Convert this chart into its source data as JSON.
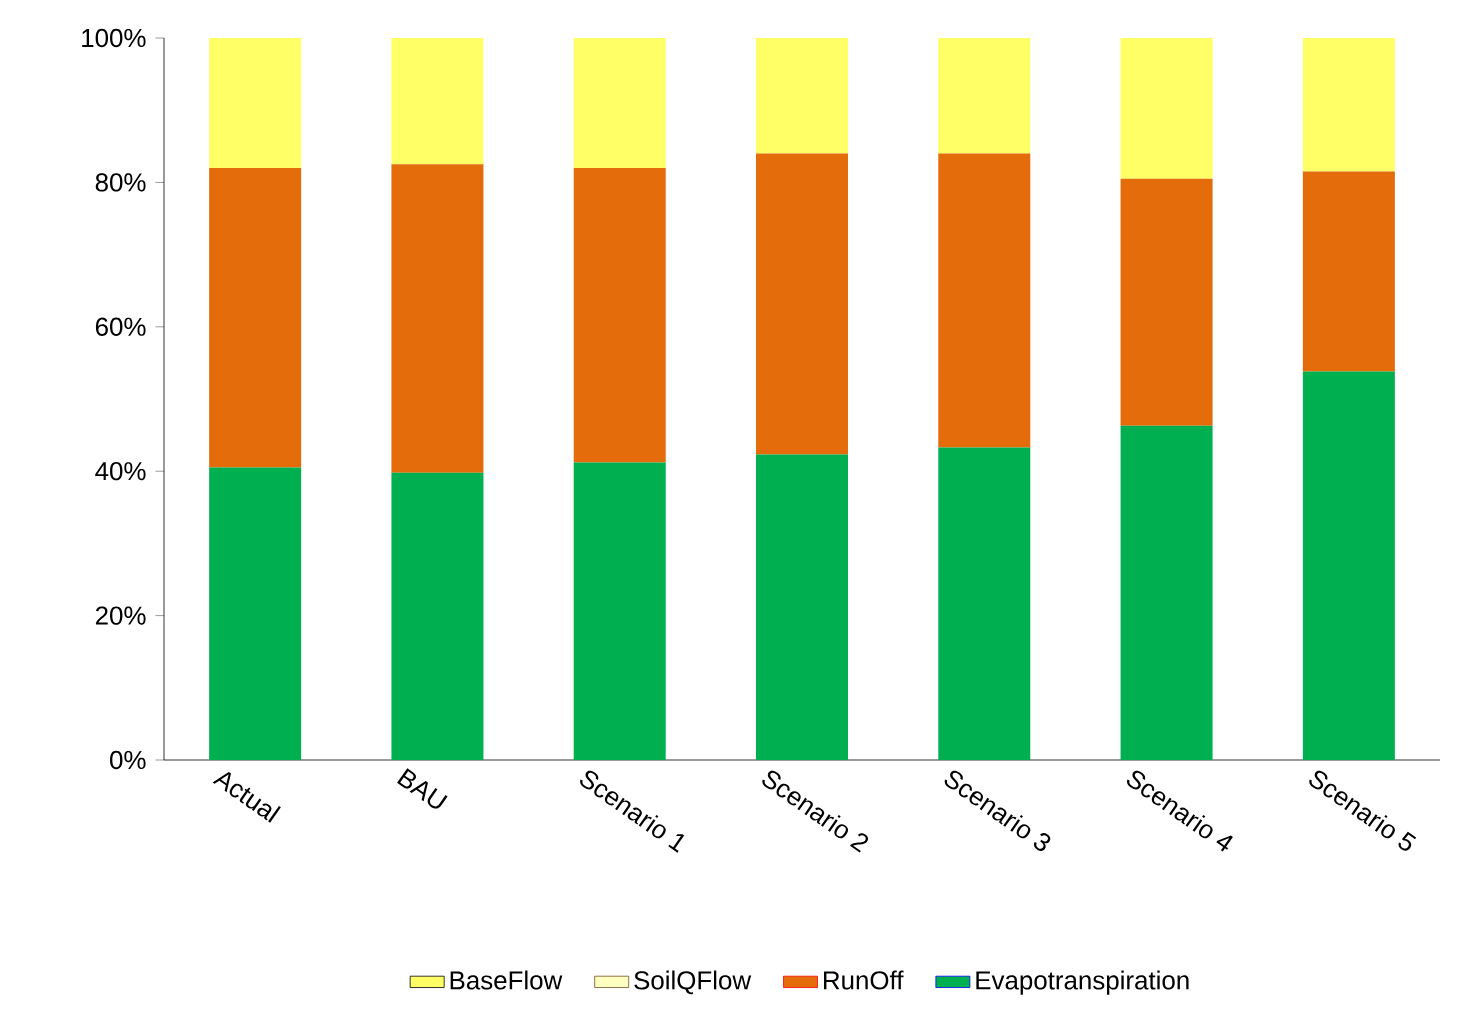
{
  "chart_data": {
    "type": "bar",
    "stacked": true,
    "categories": [
      "Actual",
      "BAU",
      "Scenario 1",
      "Scenario 2",
      "Scenario 3",
      "Scenario 4",
      "Scenario 5"
    ],
    "series": [
      {
        "name": "Evapotranspiration",
        "color": "#00b050",
        "values": [
          40.5,
          39.8,
          41.2,
          42.3,
          43.3,
          46.3,
          53.8
        ]
      },
      {
        "name": "RunOff",
        "color": "#e46c0a",
        "values": [
          41.5,
          42.7,
          40.8,
          41.7,
          40.7,
          34.2,
          27.7
        ]
      },
      {
        "name": "SoilQFlow",
        "color": "#ffffc0",
        "values": [
          0,
          0,
          0,
          0,
          0,
          0,
          0
        ]
      },
      {
        "name": "BaseFlow",
        "color": "#ffff66",
        "values": [
          18,
          17.5,
          18,
          16,
          16,
          19.5,
          18.5
        ]
      }
    ],
    "ylim": [
      0,
      100
    ],
    "yticks": [
      {
        "value": 0,
        "label": "0%"
      },
      {
        "value": 20,
        "label": "20%"
      },
      {
        "value": 40,
        "label": "40%"
      },
      {
        "value": 60,
        "label": "60%"
      },
      {
        "value": 80,
        "label": "80%"
      },
      {
        "value": 100,
        "label": "100%"
      }
    ],
    "grid": false,
    "legend": "bottom"
  }
}
